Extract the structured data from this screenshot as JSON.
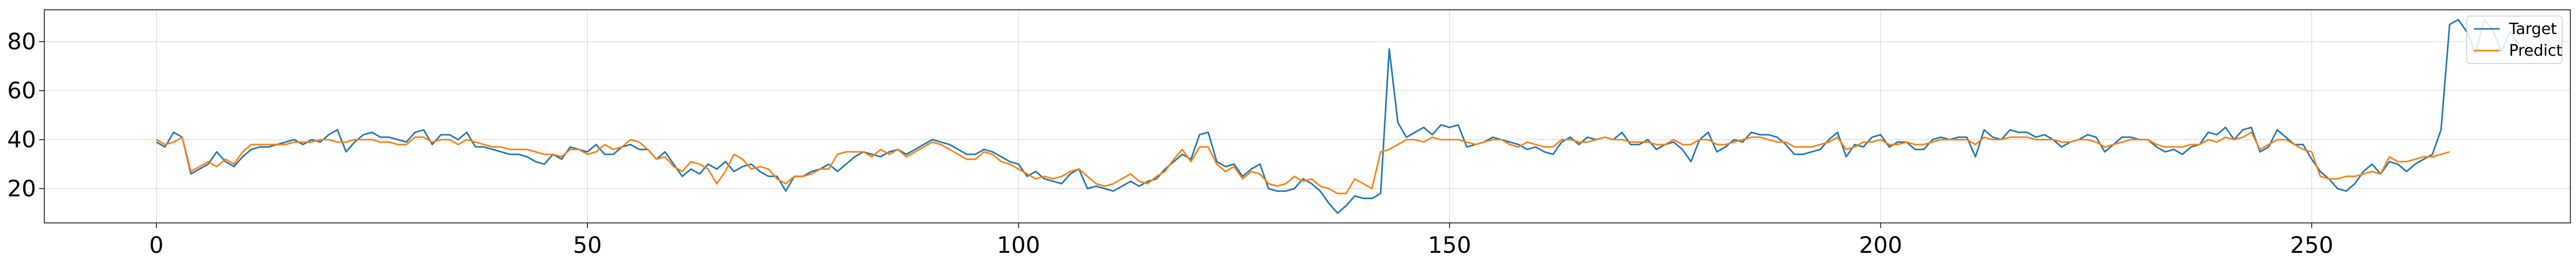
{
  "chart_data": {
    "type": "line",
    "title": "",
    "xlabel": "",
    "ylabel": "",
    "xlim": [
      -13,
      280
    ],
    "ylim": [
      6,
      93
    ],
    "grid": true,
    "legend_position": "top-right",
    "x_ticks": [
      0,
      50,
      100,
      150,
      200,
      250
    ],
    "y_ticks": [
      20,
      40,
      60,
      80
    ],
    "series": [
      {
        "name": "Target",
        "color": "#1f77b4",
        "values": [
          39,
          37,
          43,
          41,
          26,
          28,
          30,
          35,
          31,
          29,
          33,
          36,
          37,
          37,
          38,
          39,
          40,
          38,
          40,
          39,
          42,
          44,
          35,
          39,
          42,
          43,
          41,
          41,
          40,
          39,
          43,
          44,
          38,
          42,
          42,
          40,
          43,
          37,
          37,
          36,
          35,
          34,
          34,
          33,
          31,
          30,
          34,
          32,
          37,
          36,
          35,
          38,
          34,
          34,
          37,
          38,
          36,
          36,
          32,
          35,
          30,
          25,
          28,
          26,
          30,
          28,
          31,
          27,
          29,
          30,
          27,
          25,
          25,
          19,
          25,
          25,
          27,
          28,
          30,
          27,
          30,
          33,
          35,
          34,
          33,
          35,
          36,
          34,
          36,
          38,
          40,
          39,
          38,
          36,
          34,
          34,
          36,
          35,
          33,
          31,
          30,
          25,
          27,
          24,
          23,
          22,
          26,
          28,
          20,
          21,
          20,
          19,
          21,
          23,
          21,
          23,
          24,
          28,
          31,
          34,
          32,
          42,
          43,
          31,
          29,
          30,
          25,
          28,
          30,
          20,
          19,
          19,
          20,
          24,
          22,
          19,
          14,
          10,
          13,
          17,
          16,
          16,
          18,
          77,
          47,
          41,
          43,
          45,
          42,
          46,
          45,
          46,
          37,
          38,
          39,
          41,
          40,
          39,
          38,
          36,
          37,
          35,
          34,
          39,
          41,
          38,
          41,
          40,
          41,
          40,
          43,
          38,
          38,
          40,
          36,
          38,
          39,
          36,
          31,
          40,
          43,
          35,
          37,
          40,
          39,
          43,
          42,
          42,
          41,
          38,
          34,
          34,
          35,
          36,
          40,
          43,
          33,
          38,
          37,
          41,
          42,
          37,
          39,
          39,
          36,
          36,
          40,
          41,
          40,
          41,
          41,
          33,
          44,
          41,
          40,
          44,
          43,
          43,
          41,
          42,
          40,
          37,
          39,
          40,
          42,
          41,
          35,
          38,
          41,
          41,
          40,
          40,
          37,
          35,
          36,
          34,
          37,
          38,
          43,
          42,
          45,
          40,
          44,
          45,
          35,
          37,
          44,
          41,
          38,
          38,
          32,
          27,
          24,
          20,
          19,
          22,
          27,
          30,
          26,
          31,
          30,
          27,
          30,
          32,
          34,
          44,
          87,
          89,
          84,
          75,
          89,
          85,
          76,
          84,
          79
        ]
      },
      {
        "name": "Predict",
        "color": "#ff7f0e",
        "values": [
          40,
          38,
          39,
          41,
          27,
          29,
          31,
          29,
          32,
          30,
          35,
          38,
          38,
          38,
          38,
          38,
          39,
          39,
          39,
          40,
          40,
          39,
          39,
          40,
          40,
          40,
          39,
          39,
          38,
          38,
          41,
          41,
          39,
          40,
          40,
          38,
          40,
          39,
          38,
          37,
          37,
          36,
          36,
          36,
          35,
          34,
          34,
          33,
          36,
          36,
          34,
          35,
          38,
          36,
          37,
          40,
          39,
          36,
          32,
          33,
          29,
          27,
          31,
          30,
          28,
          22,
          27,
          34,
          32,
          28,
          29,
          28,
          24,
          22,
          25,
          25,
          26,
          28,
          28,
          34,
          35,
          35,
          35,
          33,
          36,
          34,
          36,
          33,
          35,
          37,
          39,
          38,
          36,
          34,
          32,
          32,
          35,
          34,
          31,
          30,
          28,
          26,
          24,
          25,
          24,
          25,
          27,
          28,
          25,
          22,
          21,
          22,
          24,
          26,
          23,
          22,
          25,
          27,
          32,
          36,
          31,
          37,
          37,
          30,
          27,
          29,
          24,
          27,
          26,
          22,
          21,
          22,
          25,
          23,
          24,
          21,
          20,
          18,
          18,
          24,
          22,
          20,
          35,
          36,
          38,
          40,
          40,
          39,
          41,
          40,
          40,
          40,
          39,
          38,
          39,
          40,
          40,
          38,
          37,
          39,
          38,
          37,
          37,
          40,
          40,
          39,
          39,
          40,
          41,
          40,
          40,
          39,
          39,
          39,
          38,
          38,
          40,
          38,
          38,
          40,
          40,
          38,
          38,
          39,
          40,
          41,
          41,
          40,
          39,
          39,
          37,
          37,
          37,
          38,
          39,
          41,
          36,
          37,
          39,
          39,
          40,
          38,
          38,
          39,
          38,
          38,
          39,
          40,
          40,
          40,
          40,
          38,
          41,
          40,
          40,
          41,
          41,
          41,
          40,
          40,
          40,
          39,
          39,
          40,
          40,
          39,
          37,
          38,
          39,
          40,
          40,
          40,
          38,
          37,
          37,
          37,
          38,
          38,
          40,
          39,
          41,
          40,
          41,
          43,
          36,
          38,
          40,
          40,
          38,
          36,
          35,
          25,
          24,
          24,
          25,
          25,
          26,
          27,
          26,
          33,
          31,
          31,
          32,
          33,
          33,
          34,
          35
        ]
      }
    ]
  }
}
